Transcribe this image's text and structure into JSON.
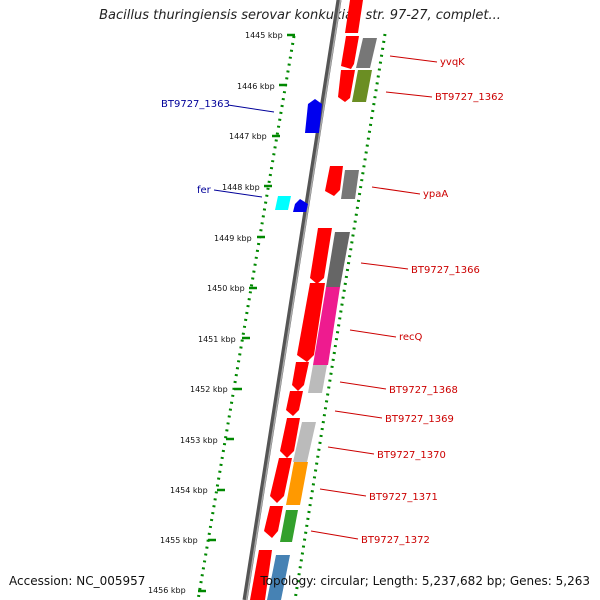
{
  "title": "Bacillus thuringiensis serovar konkukian str. 97-27, complet...",
  "accession": "Accession: NC_005957",
  "topology": "Topology: circular; Length: 5,237,682 bp; Genes: 5,263",
  "ticks": [
    "1445 kbp",
    "1446 kbp",
    "1447 kbp",
    "1448 kbp",
    "1449 kbp",
    "1450 kbp",
    "1451 kbp",
    "1452 kbp",
    "1453 kbp",
    "1454 kbp",
    "1455 kbp",
    "1456 kbp"
  ],
  "genes": [
    {
      "label": "yvqK",
      "color": "#cc0000"
    },
    {
      "label": "BT9727_1362",
      "color": "#cc0000"
    },
    {
      "label": "BT9727_1363",
      "color": "#000099"
    },
    {
      "label": "ypaA",
      "color": "#cc0000"
    },
    {
      "label": "fer",
      "color": "#000099"
    },
    {
      "label": "BT9727_1366",
      "color": "#cc0000"
    },
    {
      "label": "recQ",
      "color": "#cc0000"
    },
    {
      "label": "BT9727_1368",
      "color": "#cc0000"
    },
    {
      "label": "BT9727_1369",
      "color": "#cc0000"
    },
    {
      "label": "BT9727_1370",
      "color": "#cc0000"
    },
    {
      "label": "BT9727_1371",
      "color": "#cc0000"
    },
    {
      "label": "BT9727_1372",
      "color": "#cc0000"
    }
  ],
  "colors": {
    "backbone": "#777777",
    "forward_cds": "#ff0000",
    "reverse_cds": "#0000ff",
    "tick_marks": "#008800"
  }
}
